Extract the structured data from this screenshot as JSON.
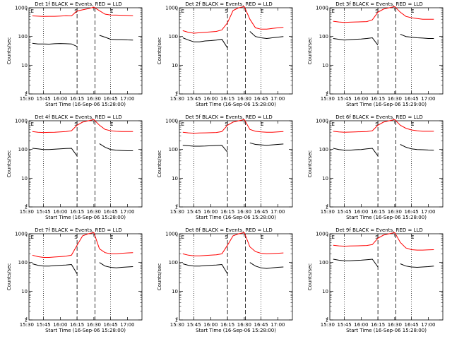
{
  "chart_data": [
    {
      "type": "line",
      "title": "Det 1f BLACK = Events, RED = LLD",
      "ylabel": "Counts/sec",
      "xlabel": "Start Time (16-Sep-06 15:28:00)",
      "xticks": [
        "15:30",
        "15:45",
        "16:00",
        "16:15",
        "16:30",
        "16:45",
        "17:00"
      ],
      "xlim_minutes": [
        2,
        103
      ],
      "ylim": [
        1,
        1000
      ],
      "y_scale": "log",
      "yticks": [
        "1",
        "10",
        "100",
        "1000"
      ],
      "markers": [
        {
          "label": "E",
          "minutes": 5
        },
        {
          "label": "S",
          "minutes": 44
        },
        {
          "label": "E",
          "minutes": 76
        }
      ],
      "series": [
        {
          "color": "#ff0000",
          "values": [
            520,
            510,
            500,
            505,
            505,
            515,
            530,
            520,
            770,
            850,
            930,
            1050,
            790,
            600,
            560,
            555,
            550,
            540,
            530
          ]
        },
        {
          "color": "#000000",
          "values": [
            58,
            55,
            55,
            54,
            56,
            57,
            56,
            55,
            45,
            null,
            null,
            null,
            110,
            95,
            80,
            78,
            78,
            76,
            75
          ]
        }
      ]
    },
    {
      "type": "line",
      "title": "Det 2f BLACK = Events, RED = LLD",
      "ylabel": "Counts/sec",
      "xlabel": "Start Time (16-Sep-06 15:28:00)",
      "xticks": [
        "15:30",
        "15:45",
        "16:00",
        "16:15",
        "16:30",
        "16:45",
        "17:00"
      ],
      "xlim_minutes": [
        2,
        103
      ],
      "ylim": [
        1,
        1000
      ],
      "y_scale": "log",
      "yticks": [
        "1",
        "10",
        "100",
        "1000"
      ],
      "markers": [
        {
          "label": "E",
          "minutes": 5
        },
        {
          "label": "S",
          "minutes": 44
        },
        {
          "label": "E",
          "minutes": 76
        }
      ],
      "series": [
        {
          "color": "#ff0000",
          "values": [
            160,
            140,
            130,
            135,
            140,
            145,
            150,
            170,
            300,
            800,
            1000,
            1100,
            400,
            200,
            180,
            180,
            190,
            200,
            210
          ]
        },
        {
          "color": "#000000",
          "values": [
            90,
            75,
            65,
            65,
            70,
            72,
            75,
            80,
            40,
            null,
            null,
            null,
            150,
            100,
            90,
            85,
            90,
            95,
            100
          ]
        }
      ]
    },
    {
      "type": "line",
      "title": "Det 3f BLACK = Events, RED = LLD",
      "ylabel": "Counts/sec",
      "xlabel": "Start Time (16-Sep-06 15:29:00)",
      "xticks": [
        "15:30",
        "15:45",
        "16:00",
        "16:15",
        "16:30",
        "16:45",
        "17:00"
      ],
      "xlim_minutes": [
        2,
        103
      ],
      "ylim": [
        1,
        1000
      ],
      "y_scale": "log",
      "yticks": [
        "1",
        "10",
        "100",
        "1000"
      ],
      "markers": [
        {
          "label": "E",
          "minutes": 5
        },
        {
          "label": "S",
          "minutes": 44
        },
        {
          "label": "E",
          "minutes": 76
        }
      ],
      "series": [
        {
          "color": "#ff0000",
          "values": [
            340,
            320,
            310,
            315,
            320,
            325,
            330,
            380,
            700,
            900,
            1000,
            1100,
            700,
            500,
            450,
            420,
            400,
            400,
            400
          ]
        },
        {
          "color": "#000000",
          "values": [
            85,
            80,
            75,
            78,
            80,
            82,
            85,
            90,
            50,
            null,
            null,
            null,
            120,
            100,
            95,
            90,
            88,
            85,
            85
          ]
        }
      ]
    },
    {
      "type": "line",
      "title": "Det 4f BLACK = Events, RED = LLD",
      "ylabel": "Counts/sec",
      "xlabel": "Start Time (16-Sep-06 15:28:00)",
      "xticks": [
        "15:30",
        "15:45",
        "16:00",
        "16:15",
        "16:30",
        "16:45",
        "17:00"
      ],
      "xlim_minutes": [
        2,
        103
      ],
      "ylim": [
        1,
        1000
      ],
      "y_scale": "log",
      "yticks": [
        "1",
        "10",
        "100",
        "1000"
      ],
      "markers": [
        {
          "label": "E",
          "minutes": 5
        },
        {
          "label": "S",
          "minutes": 44
        },
        {
          "label": "E",
          "minutes": 76
        }
      ],
      "series": [
        {
          "color": "#ff0000",
          "values": [
            420,
            400,
            390,
            395,
            400,
            410,
            420,
            450,
            700,
            900,
            1000,
            1100,
            700,
            500,
            450,
            430,
            420,
            420,
            420
          ]
        },
        {
          "color": "#000000",
          "values": [
            110,
            105,
            100,
            100,
            102,
            105,
            108,
            110,
            60,
            null,
            null,
            null,
            160,
            120,
            100,
            95,
            92,
            90,
            90
          ]
        }
      ]
    },
    {
      "type": "line",
      "title": "Det 5f BLACK = Events, RED = LLD",
      "ylabel": "Counts/sec",
      "xlabel": "Start Time (16-Sep-06 15:28:00)",
      "xticks": [
        "15:30",
        "15:45",
        "16:00",
        "16:15",
        "16:30",
        "16:45",
        "17:00"
      ],
      "xlim_minutes": [
        2,
        103
      ],
      "ylim": [
        1,
        1000
      ],
      "y_scale": "log",
      "yticks": [
        "1",
        "10",
        "100",
        "1000"
      ],
      "markers": [
        {
          "label": "E",
          "minutes": 5
        },
        {
          "label": "S",
          "minutes": 44
        },
        {
          "label": "E",
          "minutes": 76
        }
      ],
      "series": [
        {
          "color": "#ff0000",
          "values": [
            400,
            380,
            370,
            375,
            380,
            385,
            390,
            420,
            700,
            900,
            1000,
            1100,
            500,
            430,
            410,
            400,
            400,
            410,
            420
          ]
        },
        {
          "color": "#000000",
          "values": [
            140,
            135,
            130,
            130,
            132,
            135,
            138,
            140,
            80,
            null,
            null,
            null,
            170,
            150,
            145,
            140,
            145,
            150,
            155
          ]
        }
      ]
    },
    {
      "type": "line",
      "title": "Det 6f BLACK = Events, RED = LLD",
      "ylabel": "Counts/sec",
      "xlabel": "Start Time (16-Sep-06 15:28:00)",
      "xticks": [
        "15:30",
        "15:45",
        "16:00",
        "16:15",
        "16:30",
        "16:45",
        "17:00"
      ],
      "xlim_minutes": [
        2,
        103
      ],
      "ylim": [
        1,
        1000
      ],
      "y_scale": "log",
      "yticks": [
        "1",
        "10",
        "100",
        "1000"
      ],
      "markers": [
        {
          "label": "E",
          "minutes": 5
        },
        {
          "label": "S",
          "minutes": 44
        },
        {
          "label": "E",
          "minutes": 76
        }
      ],
      "series": [
        {
          "color": "#ff0000",
          "values": [
            430,
            410,
            400,
            405,
            410,
            415,
            420,
            450,
            700,
            900,
            1000,
            1100,
            700,
            550,
            480,
            450,
            430,
            430,
            430
          ]
        },
        {
          "color": "#000000",
          "values": [
            110,
            100,
            95,
            95,
            98,
            100,
            105,
            110,
            60,
            null,
            null,
            null,
            150,
            120,
            105,
            100,
            98,
            96,
            95
          ]
        }
      ]
    },
    {
      "type": "line",
      "title": "Det 7f BLACK = Events, RED = LLD",
      "ylabel": "Counts/sec",
      "xlabel": "Start Time (16-Sep-06 15:28:00)",
      "xticks": [
        "15:30",
        "15:45",
        "16:00",
        "16:15",
        "16:30",
        "16:45",
        "17:00"
      ],
      "xlim_minutes": [
        2,
        103
      ],
      "ylim": [
        1,
        1000
      ],
      "y_scale": "log",
      "yticks": [
        "1",
        "10",
        "100",
        "1000"
      ],
      "markers": [
        {
          "label": "E",
          "minutes": 5
        },
        {
          "label": "S",
          "minutes": 44
        },
        {
          "label": "E",
          "minutes": 76
        }
      ],
      "series": [
        {
          "color": "#ff0000",
          "values": [
            180,
            160,
            150,
            150,
            155,
            160,
            165,
            180,
            400,
            850,
            1000,
            1100,
            300,
            220,
            200,
            200,
            210,
            215,
            220
          ]
        },
        {
          "color": "#000000",
          "values": [
            90,
            80,
            75,
            75,
            78,
            80,
            82,
            85,
            40,
            null,
            null,
            null,
            100,
            75,
            68,
            65,
            68,
            70,
            72
          ]
        }
      ]
    },
    {
      "type": "line",
      "title": "Det 8f BLACK = Events, RED = LLD",
      "ylabel": "Counts/sec",
      "xlabel": "Start Time (16-Sep-06 15:28:00)",
      "xticks": [
        "15:30",
        "15:45",
        "16:00",
        "16:15",
        "16:30",
        "16:45",
        "17:00"
      ],
      "xlim_minutes": [
        2,
        103
      ],
      "ylim": [
        1,
        1000
      ],
      "y_scale": "log",
      "yticks": [
        "1",
        "10",
        "100",
        "1000"
      ],
      "markers": [
        {
          "label": "E",
          "minutes": 5
        },
        {
          "label": "S",
          "minutes": 44
        },
        {
          "label": "E",
          "minutes": 76
        }
      ],
      "series": [
        {
          "color": "#ff0000",
          "values": [
            200,
            180,
            170,
            170,
            175,
            180,
            185,
            200,
            400,
            850,
            1000,
            1100,
            350,
            240,
            210,
            200,
            205,
            210,
            215
          ]
        },
        {
          "color": "#000000",
          "values": [
            90,
            80,
            75,
            75,
            78,
            80,
            82,
            85,
            40,
            null,
            null,
            null,
            100,
            75,
            65,
            62,
            65,
            68,
            70
          ]
        }
      ]
    },
    {
      "type": "line",
      "title": "Det 9f BLACK = Events, RED = LLD",
      "ylabel": "Counts/sec",
      "xlabel": "Start Time (16-Sep-06 15:28:00)",
      "xticks": [
        "15:30",
        "15:45",
        "16:00",
        "16:15",
        "16:30",
        "16:45",
        "17:00"
      ],
      "xlim_minutes": [
        2,
        103
      ],
      "ylim": [
        1,
        1000
      ],
      "y_scale": "log",
      "yticks": [
        "1",
        "10",
        "100",
        "1000"
      ],
      "markers": [
        {
          "label": "E",
          "minutes": 5
        },
        {
          "label": "S",
          "minutes": 44
        },
        {
          "label": "E",
          "minutes": 76
        }
      ],
      "series": [
        {
          "color": "#ff0000",
          "values": [
            400,
            380,
            370,
            375,
            380,
            385,
            390,
            420,
            700,
            900,
            1000,
            1100,
            500,
            320,
            280,
            270,
            270,
            275,
            280
          ]
        },
        {
          "color": "#000000",
          "values": [
            130,
            120,
            115,
            115,
            118,
            120,
            125,
            130,
            70,
            null,
            null,
            null,
            90,
            75,
            70,
            68,
            70,
            72,
            75
          ]
        }
      ]
    }
  ]
}
